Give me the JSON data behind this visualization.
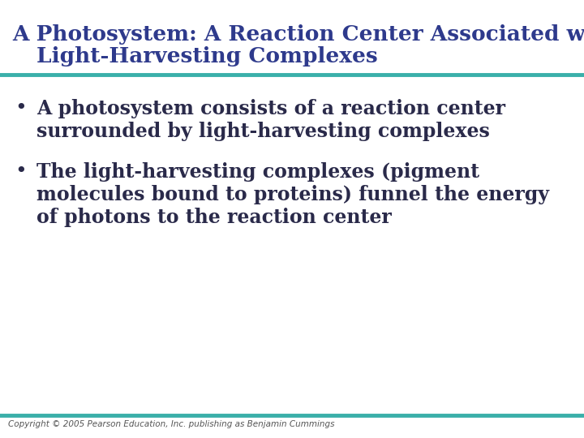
{
  "title_line1": "A Photosystem: A Reaction Center Associated with",
  "title_line2": "  Light-Harvesting Complexes",
  "title_color": "#2E3A8C",
  "title_fontsize": 19,
  "bullet1_line1": "A photosystem consists of a reaction center",
  "bullet1_line2": "surrounded by light-harvesting complexes",
  "bullet2_line1": "The light-harvesting complexes (pigment",
  "bullet2_line2": "molecules bound to proteins) funnel the energy",
  "bullet2_line3": "of photons to the reaction center",
  "bullet_color": "#2a2a4a",
  "bullet_fontsize": 17,
  "bullet_symbol": "•",
  "divider_color": "#3aafa9",
  "divider_linewidth": 3.5,
  "footer_text": "Copyright © 2005 Pearson Education, Inc. publishing as Benjamin Cummings",
  "footer_fontsize": 7.5,
  "footer_color": "#555555",
  "bg_color": "#ffffff"
}
